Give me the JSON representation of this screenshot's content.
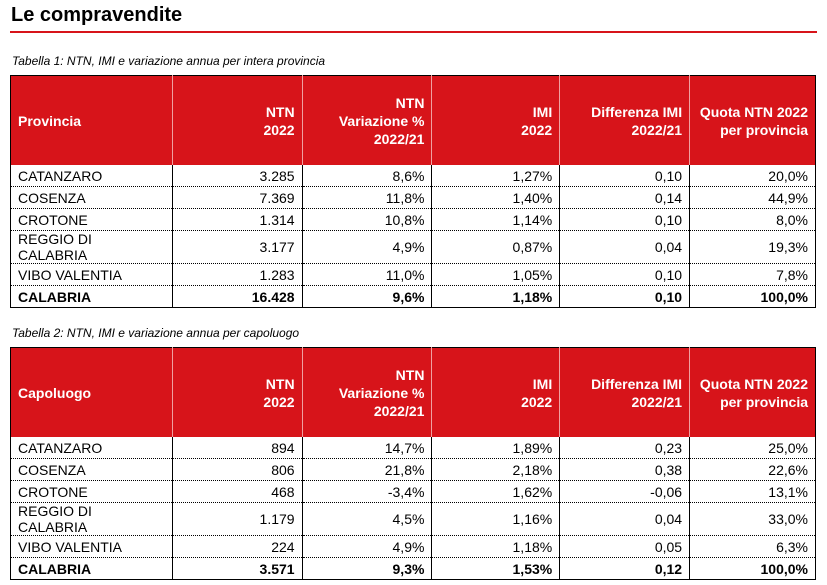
{
  "header": {
    "title": "Le compravendite"
  },
  "tables": [
    {
      "caption": "Tabella 1: NTN, IMI e variazione annua per intera provincia",
      "columns": [
        "Provincia",
        "NTN\n2022",
        "NTN\nVariazione %\n2022/21",
        "IMI\n2022",
        "Differenza IMI\n2022/21",
        "Quota NTN 2022\nper provincia"
      ],
      "rows": [
        [
          "CATANZARO",
          "3.285",
          "8,6%",
          "1,27%",
          "0,10",
          "20,0%"
        ],
        [
          "COSENZA",
          "7.369",
          "11,8%",
          "1,40%",
          "0,14",
          "44,9%"
        ],
        [
          "CROTONE",
          "1.314",
          "10,8%",
          "1,14%",
          "0,10",
          "8,0%"
        ],
        [
          "REGGIO DI CALABRIA",
          "3.177",
          "4,9%",
          "0,87%",
          "0,04",
          "19,3%"
        ],
        [
          "VIBO VALENTIA",
          "1.283",
          "11,0%",
          "1,05%",
          "0,10",
          "7,8%"
        ],
        [
          "CALABRIA",
          "16.428",
          "9,6%",
          "1,18%",
          "0,10",
          "100,0%"
        ]
      ]
    },
    {
      "caption": "Tabella 2: NTN, IMI e variazione annua per capoluogo",
      "columns": [
        "Capoluogo",
        "NTN\n2022",
        "NTN\nVariazione %\n2022/21",
        "IMI\n2022",
        "Differenza IMI\n2022/21",
        "Quota NTN 2022\nper provincia"
      ],
      "rows": [
        [
          "CATANZARO",
          "894",
          "14,7%",
          "1,89%",
          "0,23",
          "25,0%"
        ],
        [
          "COSENZA",
          "806",
          "21,8%",
          "2,18%",
          "0,38",
          "22,6%"
        ],
        [
          "CROTONE",
          "468",
          "-3,4%",
          "1,62%",
          "-0,06",
          "13,1%"
        ],
        [
          "REGGIO DI CALABRIA",
          "1.179",
          "4,5%",
          "1,16%",
          "0,04",
          "33,0%"
        ],
        [
          "VIBO VALENTIA",
          "224",
          "4,9%",
          "1,18%",
          "0,05",
          "6,3%"
        ],
        [
          "CALABRIA",
          "3.571",
          "9,3%",
          "1,53%",
          "0,12",
          "100,0%"
        ]
      ]
    }
  ]
}
